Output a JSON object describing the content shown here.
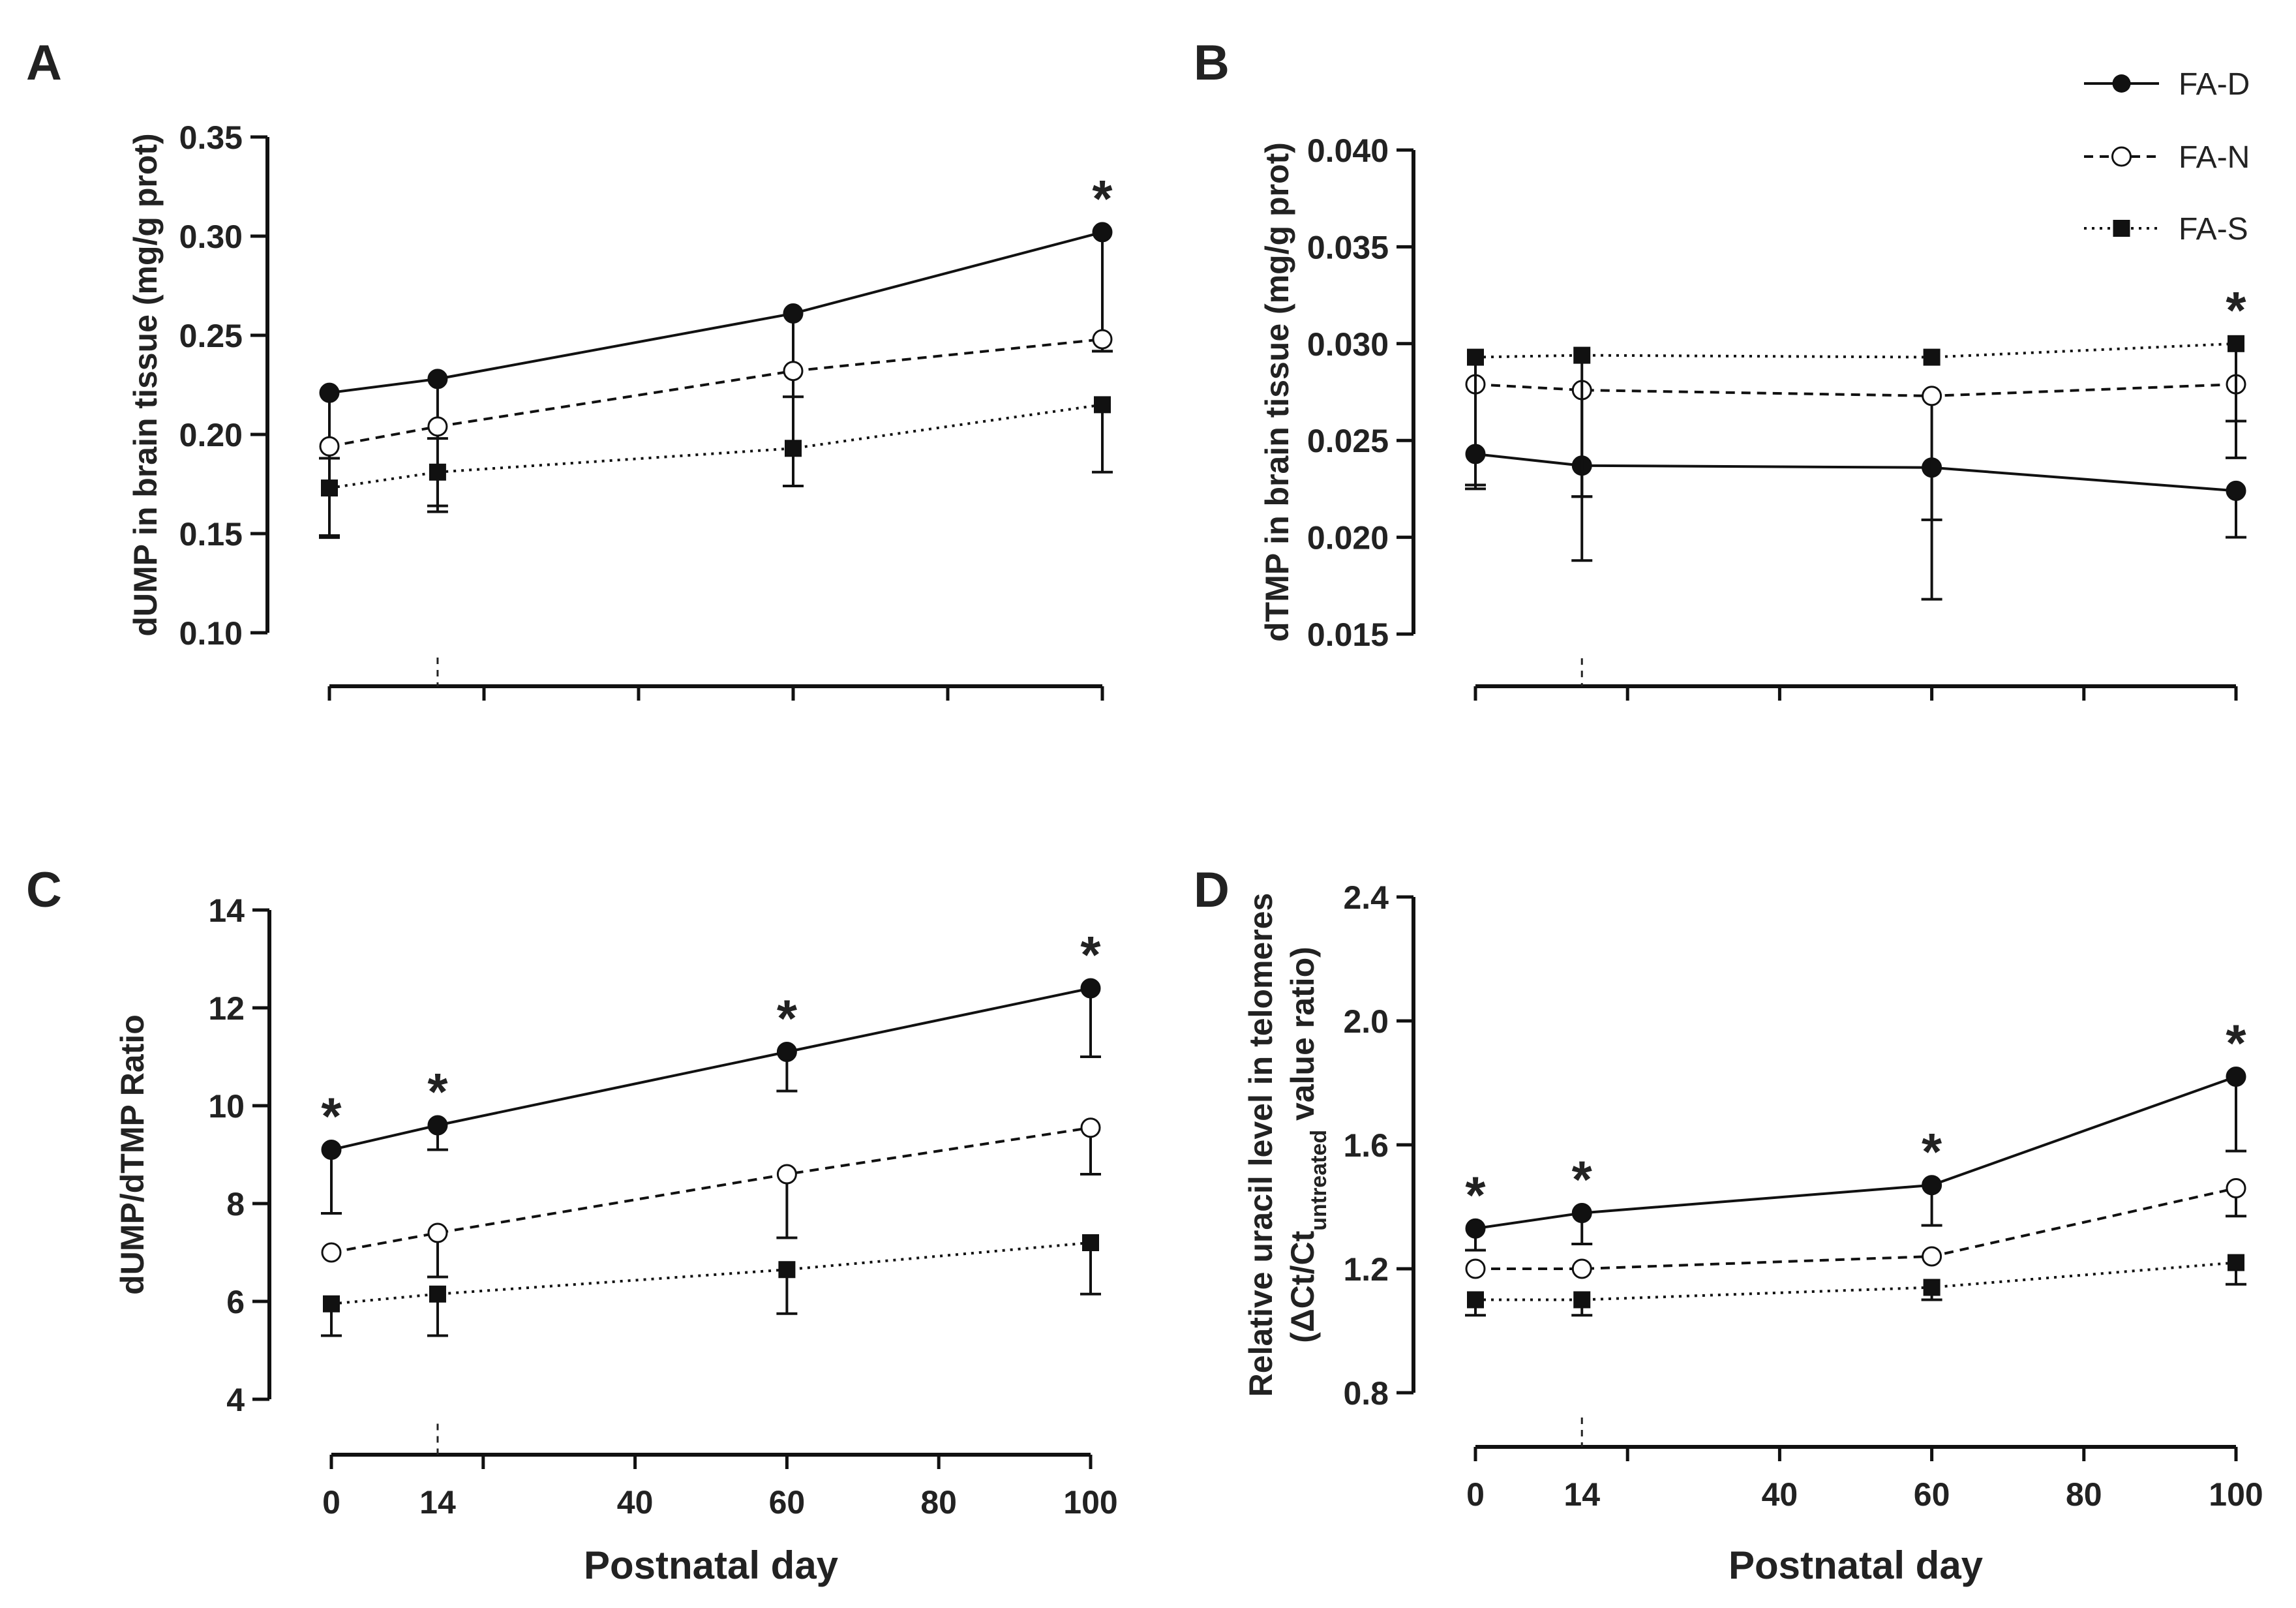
{
  "legend": [
    {
      "name": "FA-D",
      "marker": "filled-circle",
      "dash": "solid"
    },
    {
      "name": "FA-N",
      "marker": "open-circle",
      "dash": "dashed"
    },
    {
      "name": "FA-S",
      "marker": "filled-square",
      "dash": "dotted"
    }
  ],
  "chart_data": [
    {
      "panel": "A",
      "type": "line",
      "title": "",
      "ylabel": "dUMP in brain tissue (mg/g prot)",
      "xlabel": "",
      "ylim": [
        0.1,
        0.35
      ],
      "yticks": [
        "0.10",
        "0.15",
        "0.20",
        "0.25",
        "0.30",
        "0.35"
      ],
      "xlim": [
        0,
        100
      ],
      "xticks": [],
      "x": [
        0,
        14,
        60,
        100
      ],
      "reference_x": 14,
      "series": [
        {
          "name": "FA-D",
          "values": [
            0.221,
            0.228,
            0.261,
            0.302
          ],
          "err": [
            0.033,
            0.03,
            0.042,
            0.06
          ],
          "err_dir": "down"
        },
        {
          "name": "FA-N",
          "values": [
            0.194,
            0.204,
            0.232,
            0.248
          ],
          "err": [
            0.046,
            0.04,
            0.058,
            0.006
          ],
          "err_dir": "down"
        },
        {
          "name": "FA-S",
          "values": [
            0.173,
            0.181,
            0.193,
            0.215
          ],
          "err": [
            0.024,
            0.02,
            0.019,
            0.034
          ],
          "err_dir": "down"
        }
      ],
      "significance": [
        100
      ],
      "grid": false,
      "legend_position": "none"
    },
    {
      "panel": "B",
      "type": "line",
      "title": "",
      "ylabel": "dTMP in brain tissue (mg/g prot)",
      "xlabel": "",
      "ylim": [
        0.015,
        0.04
      ],
      "yticks": [
        "0.015",
        "0.020",
        "0.025",
        "0.030",
        "0.035",
        "0.040"
      ],
      "xlim": [
        0,
        100
      ],
      "xticks": [],
      "x": [
        0,
        14,
        60,
        100
      ],
      "reference_x": 14,
      "series": [
        {
          "name": "FA-D",
          "values": [
            0.0243,
            0.0237,
            0.0236,
            0.0224
          ],
          "err": [
            0.0016,
            0.0049,
            0.0068,
            0.0024
          ],
          "err_dir": "down"
        },
        {
          "name": "FA-N",
          "values": [
            0.0279,
            0.0276,
            0.0273,
            0.0279
          ],
          "err": [
            0.0052,
            0.0055,
            0.0064,
            0.0038
          ],
          "err_dir": "down"
        },
        {
          "name": "FA-S",
          "values": [
            0.0293,
            0.0294,
            0.0293,
            0.03
          ],
          "err": [
            0.0068,
            0.0073,
            0.0,
            0.004
          ],
          "err_dir": "down"
        }
      ],
      "significance": [
        100
      ],
      "grid": false,
      "legend_position": "top-right"
    },
    {
      "panel": "C",
      "type": "line",
      "title": "",
      "ylabel": "dUMP/dTMP Ratio",
      "xlabel": "Postnatal day",
      "ylim": [
        4,
        14
      ],
      "yticks": [
        "4",
        "6",
        "8",
        "10",
        "12",
        "14"
      ],
      "xlim": [
        0,
        100
      ],
      "xticks": [
        "0",
        "14",
        "40",
        "60",
        "80",
        "100"
      ],
      "x": [
        0,
        14,
        60,
        100
      ],
      "reference_x": 14,
      "series": [
        {
          "name": "FA-D",
          "values": [
            9.1,
            9.6,
            11.1,
            12.4
          ],
          "err": [
            1.3,
            0.5,
            0.8,
            1.4
          ],
          "err_dir": "down"
        },
        {
          "name": "FA-N",
          "values": [
            7.0,
            7.4,
            8.6,
            9.55
          ],
          "err": [
            0.0,
            0.9,
            1.3,
            0.95
          ],
          "err_dir": "down"
        },
        {
          "name": "FA-S",
          "values": [
            5.95,
            6.15,
            6.65,
            7.2
          ],
          "err": [
            0.65,
            0.85,
            0.9,
            1.05
          ],
          "err_dir": "down"
        }
      ],
      "significance": [
        0,
        14,
        60,
        100
      ],
      "grid": false,
      "legend_position": "none"
    },
    {
      "panel": "D",
      "type": "line",
      "title": "",
      "ylabel_line1": "Relative uracil level in telomeres",
      "ylabel_line2_prefix": "(ΔCt/Ct",
      "ylabel_line2_subscript": "untreated",
      "ylabel_line2_suffix": " value ratio)",
      "xlabel": "Postnatal day",
      "ylim": [
        0.8,
        2.4
      ],
      "yticks": [
        "0.8",
        "1.2",
        "1.6",
        "2.0",
        "2.4"
      ],
      "xlim": [
        0,
        100
      ],
      "xticks": [
        "0",
        "14",
        "40",
        "60",
        "80",
        "100"
      ],
      "x": [
        0,
        14,
        60,
        100
      ],
      "reference_x": 14,
      "series": [
        {
          "name": "FA-D",
          "values": [
            1.33,
            1.38,
            1.47,
            1.82
          ],
          "err": [
            0.07,
            0.1,
            0.13,
            0.24
          ],
          "err_dir": "down"
        },
        {
          "name": "FA-N",
          "values": [
            1.2,
            1.2,
            1.24,
            1.46
          ],
          "err": [
            0.0,
            0.0,
            0.0,
            0.09
          ],
          "err_dir": "down"
        },
        {
          "name": "FA-S",
          "values": [
            1.1,
            1.1,
            1.14,
            1.22
          ],
          "err": [
            0.05,
            0.05,
            0.04,
            0.07
          ],
          "err_dir": "down"
        }
      ],
      "significance": [
        0,
        14,
        60,
        100
      ],
      "grid": false,
      "legend_position": "none"
    }
  ]
}
